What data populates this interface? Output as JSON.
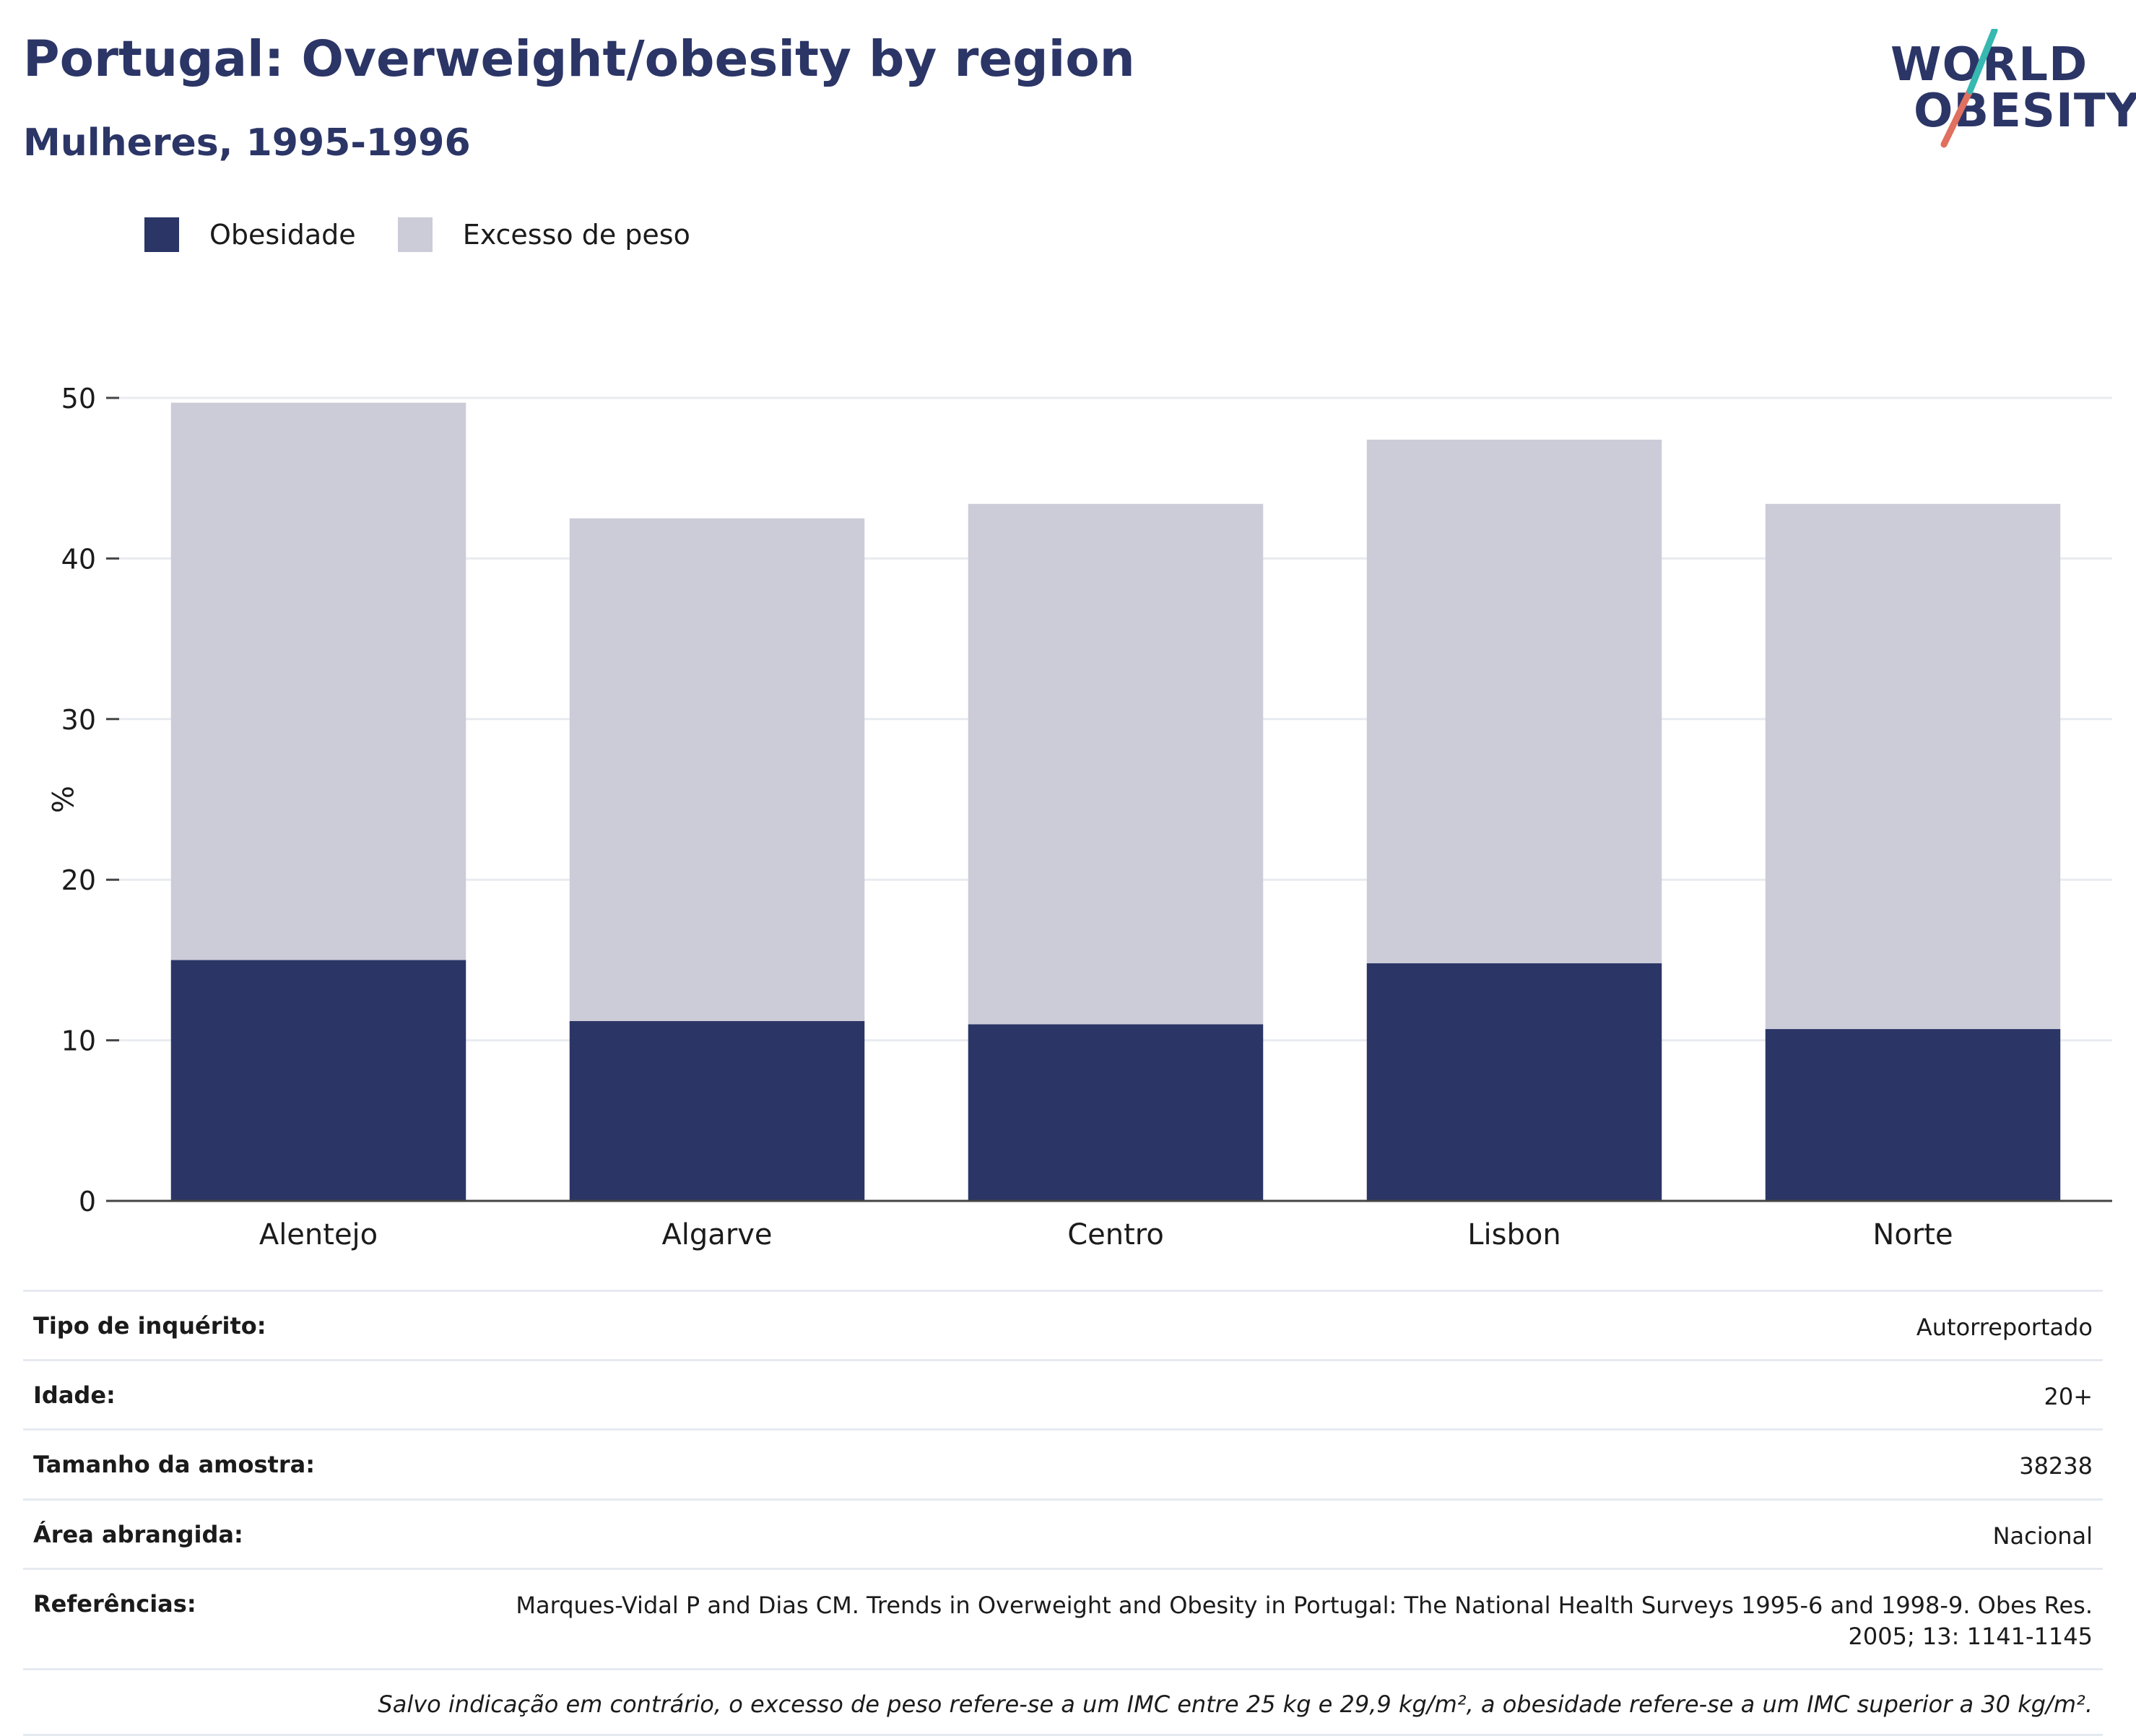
{
  "header": {
    "title": "Portugal: Overweight/obesity by region",
    "subtitle": "Mulheres, 1995-1996"
  },
  "logo": {
    "line1": "WORLD",
    "line2": "OBESITY"
  },
  "colors": {
    "obesity": "#2b3566",
    "overweight": "#cbccd8",
    "title": "#2b3566",
    "logo_teal": "#37b8b0",
    "logo_coral": "#e0705f"
  },
  "chart_data": {
    "type": "bar",
    "stacked": true,
    "categories": [
      "Alentejo",
      "Algarve",
      "Centro",
      "Lisbon",
      "Norte"
    ],
    "series": [
      {
        "name": "Obesidade",
        "values": [
          15.0,
          11.2,
          11.0,
          14.8,
          10.7
        ]
      },
      {
        "name": "Excesso de peso",
        "values": [
          34.7,
          31.3,
          32.4,
          32.6,
          32.7
        ]
      }
    ],
    "ylabel": "%",
    "xlabel": "",
    "ylim": [
      0,
      50
    ],
    "yticks": [
      0,
      10,
      20,
      30,
      40,
      50
    ],
    "grid": true,
    "legend": "top-left"
  },
  "info": {
    "rows": [
      {
        "key": "Tipo de inquérito:",
        "value": "Autorreportado"
      },
      {
        "key": "Idade:",
        "value": "20+"
      },
      {
        "key": "Tamanho da amostra:",
        "value": "38238"
      },
      {
        "key": "Área abrangida:",
        "value": "Nacional"
      },
      {
        "key": "Referências:",
        "value": "Marques-Vidal P and Dias CM. Trends in Overweight and Obesity in Portugal: The National Health Surveys 1995-6 and 1998-9. Obes Res. 2005; 13: 1141-1145"
      }
    ],
    "note": "Salvo indicação em contrário, o excesso de peso refere-se a um IMC entre 25 kg e 29,9 kg/m², a obesidade refere-se a um IMC superior a 30 kg/m²."
  }
}
